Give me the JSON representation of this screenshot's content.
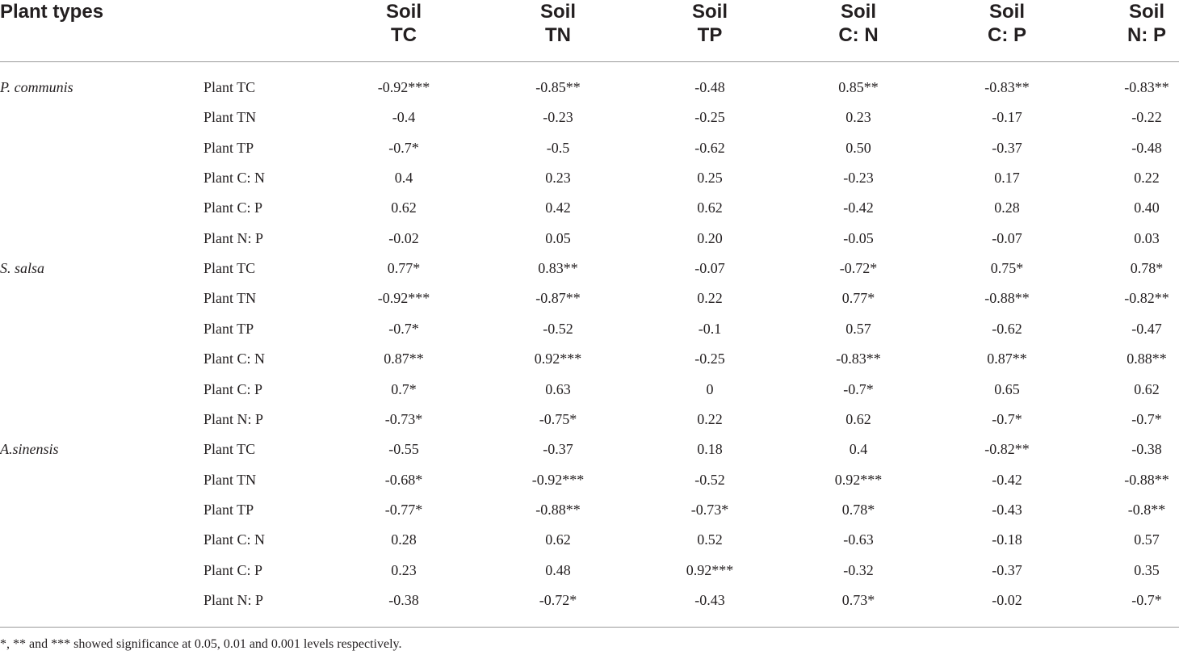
{
  "header": {
    "first": "Plant types",
    "columns": [
      {
        "top": "Soil",
        "bottom": "TC"
      },
      {
        "top": "Soil",
        "bottom": "TN"
      },
      {
        "top": "Soil",
        "bottom": "TP"
      },
      {
        "top": "Soil",
        "bottom": "C: N"
      },
      {
        "top": "Soil",
        "bottom": "C: P"
      },
      {
        "top": "Soil",
        "bottom": "N: P"
      }
    ]
  },
  "groups": [
    {
      "species": "P. communis",
      "rows": [
        {
          "label": "Plant TC",
          "values": [
            "-0.92***",
            "-0.85**",
            "-0.48",
            "0.85**",
            "-0.83**",
            "-0.83**"
          ]
        },
        {
          "label": "Plant TN",
          "values": [
            "-0.4",
            "-0.23",
            "-0.25",
            "0.23",
            "-0.17",
            "-0.22"
          ]
        },
        {
          "label": "Plant TP",
          "values": [
            "-0.7*",
            "-0.5",
            "-0.62",
            "0.50",
            "-0.37",
            "-0.48"
          ]
        },
        {
          "label": "Plant C: N",
          "values": [
            "0.4",
            "0.23",
            "0.25",
            "-0.23",
            "0.17",
            "0.22"
          ]
        },
        {
          "label": "Plant C: P",
          "values": [
            "0.62",
            "0.42",
            "0.62",
            "-0.42",
            "0.28",
            "0.40"
          ]
        },
        {
          "label": "Plant N: P",
          "values": [
            "-0.02",
            "0.05",
            "0.20",
            "-0.05",
            "-0.07",
            "0.03"
          ]
        }
      ]
    },
    {
      "species": "S. salsa",
      "rows": [
        {
          "label": "Plant TC",
          "values": [
            "0.77*",
            "0.83**",
            "-0.07",
            "-0.72*",
            "0.75*",
            "0.78*"
          ]
        },
        {
          "label": "Plant TN",
          "values": [
            "-0.92***",
            "-0.87**",
            "0.22",
            "0.77*",
            "-0.88**",
            "-0.82**"
          ]
        },
        {
          "label": "Plant TP",
          "values": [
            "-0.7*",
            "-0.52",
            "-0.1",
            "0.57",
            "-0.62",
            "-0.47"
          ]
        },
        {
          "label": "Plant C: N",
          "values": [
            "0.87**",
            "0.92***",
            "-0.25",
            "-0.83**",
            "0.87**",
            "0.88**"
          ]
        },
        {
          "label": "Plant C: P",
          "values": [
            "0.7*",
            "0.63",
            "0",
            "-0.7*",
            "0.65",
            "0.62"
          ]
        },
        {
          "label": "Plant N: P",
          "values": [
            "-0.73*",
            "-0.75*",
            "0.22",
            "0.62",
            "-0.7*",
            "-0.7*"
          ]
        }
      ]
    },
    {
      "species": "A.sinensis",
      "rows": [
        {
          "label": "Plant TC",
          "values": [
            "-0.55",
            "-0.37",
            "0.18",
            "0.4",
            "-0.82**",
            "-0.38"
          ]
        },
        {
          "label": "Plant TN",
          "values": [
            "-0.68*",
            "-0.92***",
            "-0.52",
            "0.92***",
            "-0.42",
            "-0.88**"
          ]
        },
        {
          "label": "Plant TP",
          "values": [
            "-0.77*",
            "-0.88**",
            "-0.73*",
            "0.78*",
            "-0.43",
            "-0.8**"
          ]
        },
        {
          "label": "Plant C: N",
          "values": [
            "0.28",
            "0.62",
            "0.52",
            "-0.63",
            "-0.18",
            "0.57"
          ]
        },
        {
          "label": "Plant C: P",
          "values": [
            "0.23",
            "0.48",
            "0.92***",
            "-0.32",
            "-0.37",
            "0.35"
          ]
        },
        {
          "label": "Plant N: P",
          "values": [
            "-0.38",
            "-0.72*",
            "-0.43",
            "0.73*",
            "-0.02",
            "-0.7*"
          ]
        }
      ]
    }
  ],
  "footnote": "*, ** and *** showed significance at 0.05, 0.01 and 0.001 levels respectively."
}
